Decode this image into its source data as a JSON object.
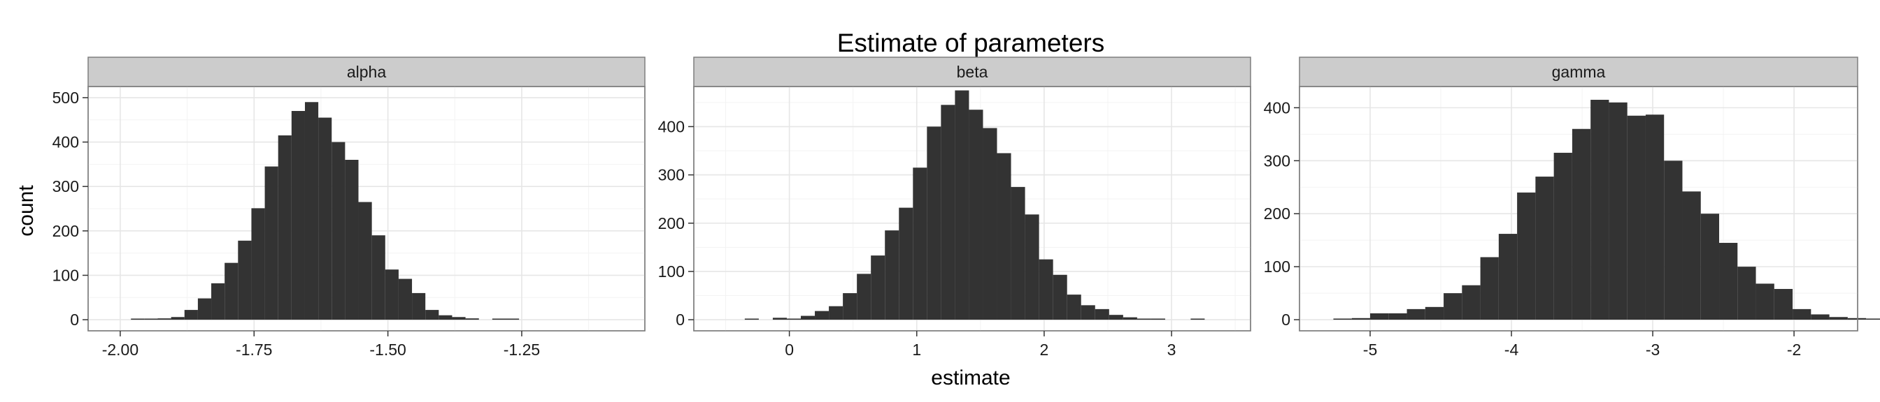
{
  "chart_data": {
    "type": "bar",
    "title": "Estimate of parameters",
    "xlabel": "estimate",
    "ylabel": "count",
    "grid": true,
    "panels": [
      {
        "name": "alpha",
        "xlim": [
          -2.06,
          -1.02
        ],
        "ylim": [
          -25,
          525
        ],
        "xticks": [
          -2.0,
          -1.75,
          -1.5,
          -1.25
        ],
        "xtick_labels": [
          "-2.00",
          "-1.75",
          "-1.50",
          "-1.25"
        ],
        "yticks": [
          0,
          100,
          200,
          300,
          400,
          500
        ],
        "ytick_labels": [
          "0",
          "100",
          "200",
          "300",
          "400",
          "500"
        ],
        "bins": [
          {
            "x0": -1.98,
            "x1": -1.955,
            "count": 1
          },
          {
            "x0": -1.955,
            "x1": -1.93,
            "count": 1
          },
          {
            "x0": -1.93,
            "x1": -1.905,
            "count": 3
          },
          {
            "x0": -1.905,
            "x1": -1.88,
            "count": 6
          },
          {
            "x0": -1.88,
            "x1": -1.855,
            "count": 22
          },
          {
            "x0": -1.855,
            "x1": -1.83,
            "count": 48
          },
          {
            "x0": -1.83,
            "x1": -1.805,
            "count": 82
          },
          {
            "x0": -1.805,
            "x1": -1.78,
            "count": 128
          },
          {
            "x0": -1.78,
            "x1": -1.755,
            "count": 178
          },
          {
            "x0": -1.755,
            "x1": -1.73,
            "count": 251
          },
          {
            "x0": -1.73,
            "x1": -1.705,
            "count": 345
          },
          {
            "x0": -1.705,
            "x1": -1.68,
            "count": 415
          },
          {
            "x0": -1.68,
            "x1": -1.655,
            "count": 470
          },
          {
            "x0": -1.655,
            "x1": -1.63,
            "count": 490
          },
          {
            "x0": -1.63,
            "x1": -1.605,
            "count": 455
          },
          {
            "x0": -1.605,
            "x1": -1.58,
            "count": 400
          },
          {
            "x0": -1.58,
            "x1": -1.555,
            "count": 360
          },
          {
            "x0": -1.555,
            "x1": -1.53,
            "count": 265
          },
          {
            "x0": -1.53,
            "x1": -1.505,
            "count": 190
          },
          {
            "x0": -1.505,
            "x1": -1.48,
            "count": 113
          },
          {
            "x0": -1.48,
            "x1": -1.455,
            "count": 92
          },
          {
            "x0": -1.455,
            "x1": -1.43,
            "count": 60
          },
          {
            "x0": -1.43,
            "x1": -1.405,
            "count": 22
          },
          {
            "x0": -1.405,
            "x1": -1.38,
            "count": 10
          },
          {
            "x0": -1.38,
            "x1": -1.355,
            "count": 6
          },
          {
            "x0": -1.355,
            "x1": -1.33,
            "count": 3
          },
          {
            "x0": -1.33,
            "x1": -1.305,
            "count": 0
          },
          {
            "x0": -1.305,
            "x1": -1.28,
            "count": 1
          },
          {
            "x0": -1.28,
            "x1": -1.255,
            "count": 1
          }
        ]
      },
      {
        "name": "beta",
        "xlim": [
          -0.75,
          3.62
        ],
        "ylim": [
          -23,
          483
        ],
        "xticks": [
          0,
          1,
          2,
          3
        ],
        "xtick_labels": [
          "0",
          "1",
          "2",
          "3"
        ],
        "yticks": [
          0,
          100,
          200,
          300,
          400
        ],
        "ytick_labels": [
          "0",
          "100",
          "200",
          "300",
          "400"
        ],
        "bins": [
          {
            "x0": -0.35,
            "x1": -0.24,
            "count": 1
          },
          {
            "x0": -0.13,
            "x1": -0.02,
            "count": 4
          },
          {
            "x0": -0.02,
            "x1": 0.09,
            "count": 2
          },
          {
            "x0": 0.09,
            "x1": 0.2,
            "count": 8
          },
          {
            "x0": 0.2,
            "x1": 0.31,
            "count": 18
          },
          {
            "x0": 0.31,
            "x1": 0.42,
            "count": 28
          },
          {
            "x0": 0.42,
            "x1": 0.53,
            "count": 55
          },
          {
            "x0": 0.53,
            "x1": 0.64,
            "count": 95
          },
          {
            "x0": 0.64,
            "x1": 0.75,
            "count": 133
          },
          {
            "x0": 0.75,
            "x1": 0.86,
            "count": 185
          },
          {
            "x0": 0.86,
            "x1": 0.97,
            "count": 232
          },
          {
            "x0": 0.97,
            "x1": 1.08,
            "count": 315
          },
          {
            "x0": 1.08,
            "x1": 1.19,
            "count": 400
          },
          {
            "x0": 1.19,
            "x1": 1.3,
            "count": 445
          },
          {
            "x0": 1.3,
            "x1": 1.41,
            "count": 475
          },
          {
            "x0": 1.41,
            "x1": 1.52,
            "count": 435
          },
          {
            "x0": 1.52,
            "x1": 1.63,
            "count": 397
          },
          {
            "x0": 1.63,
            "x1": 1.74,
            "count": 345
          },
          {
            "x0": 1.74,
            "x1": 1.85,
            "count": 275
          },
          {
            "x0": 1.85,
            "x1": 1.96,
            "count": 218
          },
          {
            "x0": 1.96,
            "x1": 2.07,
            "count": 125
          },
          {
            "x0": 2.07,
            "x1": 2.18,
            "count": 93
          },
          {
            "x0": 2.18,
            "x1": 2.29,
            "count": 52
          },
          {
            "x0": 2.29,
            "x1": 2.4,
            "count": 30
          },
          {
            "x0": 2.4,
            "x1": 2.51,
            "count": 22
          },
          {
            "x0": 2.51,
            "x1": 2.62,
            "count": 10
          },
          {
            "x0": 2.62,
            "x1": 2.73,
            "count": 5
          },
          {
            "x0": 2.73,
            "x1": 2.84,
            "count": 2
          },
          {
            "x0": 2.84,
            "x1": 2.95,
            "count": 1
          },
          {
            "x0": 3.15,
            "x1": 3.26,
            "count": 1
          }
        ]
      },
      {
        "name": "gamma",
        "xlim": [
          -5.5,
          -1.55
        ],
        "ylim": [
          -21,
          440
        ],
        "xticks": [
          -5,
          -4,
          -3,
          -2
        ],
        "xtick_labels": [
          "-5",
          "-4",
          "-3",
          "-2"
        ],
        "yticks": [
          0,
          100,
          200,
          300,
          400
        ],
        "ytick_labels": [
          "0",
          "100",
          "200",
          "300",
          "400"
        ],
        "bins": [
          {
            "x0": -5.26,
            "x1": -5.13,
            "count": 1
          },
          {
            "x0": -5.13,
            "x1": -5.0,
            "count": 3
          },
          {
            "x0": -5.0,
            "x1": -4.87,
            "count": 12
          },
          {
            "x0": -4.87,
            "x1": -4.74,
            "count": 12
          },
          {
            "x0": -4.74,
            "x1": -4.61,
            "count": 20
          },
          {
            "x0": -4.61,
            "x1": -4.48,
            "count": 24
          },
          {
            "x0": -4.48,
            "x1": -4.35,
            "count": 50
          },
          {
            "x0": -4.35,
            "x1": -4.22,
            "count": 65
          },
          {
            "x0": -4.22,
            "x1": -4.09,
            "count": 118
          },
          {
            "x0": -4.09,
            "x1": -3.96,
            "count": 162
          },
          {
            "x0": -3.96,
            "x1": -3.83,
            "count": 240
          },
          {
            "x0": -3.83,
            "x1": -3.7,
            "count": 270
          },
          {
            "x0": -3.7,
            "x1": -3.57,
            "count": 315
          },
          {
            "x0": -3.57,
            "x1": -3.44,
            "count": 360
          },
          {
            "x0": -3.44,
            "x1": -3.31,
            "count": 415
          },
          {
            "x0": -3.31,
            "x1": -3.18,
            "count": 410
          },
          {
            "x0": -3.18,
            "x1": -3.05,
            "count": 385
          },
          {
            "x0": -3.05,
            "x1": -2.92,
            "count": 387
          },
          {
            "x0": -2.92,
            "x1": -2.79,
            "count": 300
          },
          {
            "x0": -2.79,
            "x1": -2.66,
            "count": 242
          },
          {
            "x0": -2.66,
            "x1": -2.53,
            "count": 200
          },
          {
            "x0": -2.53,
            "x1": -2.4,
            "count": 145
          },
          {
            "x0": -2.4,
            "x1": -2.27,
            "count": 100
          },
          {
            "x0": -2.27,
            "x1": -2.14,
            "count": 68
          },
          {
            "x0": -2.14,
            "x1": -2.01,
            "count": 58
          },
          {
            "x0": -2.01,
            "x1": -1.88,
            "count": 20
          },
          {
            "x0": -1.88,
            "x1": -1.75,
            "count": 10
          },
          {
            "x0": -1.75,
            "x1": -1.62,
            "count": 5
          },
          {
            "x0": -1.62,
            "x1": -1.49,
            "count": 3
          },
          {
            "x0": -1.49,
            "x1": -1.36,
            "count": 2
          },
          {
            "x0": -1.36,
            "x1": -1.23,
            "count": 1
          }
        ]
      }
    ]
  }
}
